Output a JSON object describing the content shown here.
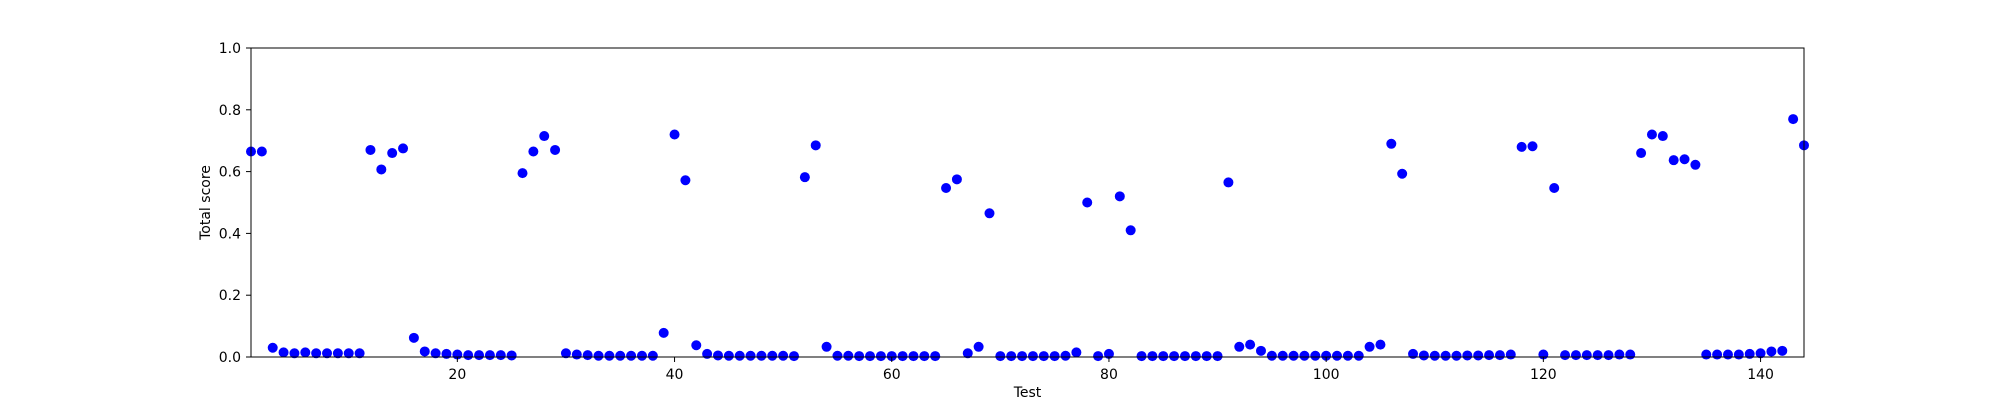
{
  "chart_data": {
    "type": "scatter",
    "xlabel": "Test",
    "ylabel": "Total score",
    "xlim": [
      1,
      144
    ],
    "ylim": [
      0.0,
      1.0
    ],
    "xticks": [
      20,
      40,
      60,
      80,
      100,
      120,
      140
    ],
    "xtick_labels": [
      "20",
      "40",
      "60",
      "80",
      "100",
      "120",
      "140"
    ],
    "yticks": [
      0.0,
      0.2,
      0.4,
      0.6,
      0.8,
      1.0
    ],
    "ytick_labels": [
      "0.0",
      "0.2",
      "0.4",
      "0.6",
      "0.8",
      "1.0"
    ],
    "grid": false,
    "marker_color": "#0000ff",
    "series": [
      {
        "x": [
          1,
          2,
          3,
          4,
          5,
          6,
          7,
          8,
          9,
          10,
          11,
          12,
          13,
          14,
          15,
          16,
          17,
          18,
          19,
          20,
          21,
          22,
          23,
          24,
          25,
          26,
          27,
          28,
          29,
          30,
          31,
          32,
          33,
          34,
          35,
          36,
          37,
          38,
          39,
          40,
          41,
          42,
          43,
          44,
          45,
          46,
          47,
          48,
          49,
          50,
          51,
          52,
          53,
          54,
          55,
          56,
          57,
          58,
          59,
          60,
          61,
          62,
          63,
          64,
          65,
          66,
          67,
          68,
          69,
          70,
          71,
          72,
          73,
          74,
          75,
          76,
          77,
          78,
          79,
          80,
          81,
          82,
          83,
          84,
          85,
          86,
          87,
          88,
          89,
          90,
          91,
          92,
          93,
          94,
          95,
          96,
          97,
          98,
          99,
          100,
          101,
          102,
          103,
          104,
          105,
          106,
          107,
          108,
          109,
          110,
          111,
          112,
          113,
          114,
          115,
          116,
          117,
          118,
          119,
          120,
          121,
          122,
          123,
          124,
          125,
          126,
          127,
          128,
          129,
          130,
          131,
          132,
          133,
          134,
          135,
          136,
          137,
          138,
          139,
          140,
          141,
          142,
          143,
          144
        ],
        "y": [
          0.665,
          0.665,
          0.03,
          0.015,
          0.012,
          0.015,
          0.012,
          0.012,
          0.012,
          0.012,
          0.012,
          0.67,
          0.607,
          0.66,
          0.675,
          0.062,
          0.018,
          0.012,
          0.01,
          0.008,
          0.006,
          0.006,
          0.006,
          0.006,
          0.005,
          0.595,
          0.665,
          0.715,
          0.67,
          0.012,
          0.008,
          0.006,
          0.004,
          0.004,
          0.004,
          0.004,
          0.004,
          0.004,
          0.078,
          0.72,
          0.572,
          0.038,
          0.01,
          0.005,
          0.004,
          0.004,
          0.004,
          0.004,
          0.004,
          0.004,
          0.003,
          0.582,
          0.685,
          0.033,
          0.004,
          0.004,
          0.003,
          0.003,
          0.003,
          0.003,
          0.003,
          0.003,
          0.003,
          0.003,
          0.547,
          0.575,
          0.012,
          0.033,
          0.465,
          0.003,
          0.003,
          0.003,
          0.003,
          0.003,
          0.003,
          0.004,
          0.015,
          0.5,
          0.003,
          0.01,
          0.52,
          0.41,
          0.003,
          0.003,
          0.003,
          0.003,
          0.003,
          0.003,
          0.003,
          0.003,
          0.565,
          0.033,
          0.04,
          0.02,
          0.004,
          0.004,
          0.004,
          0.004,
          0.004,
          0.004,
          0.004,
          0.004,
          0.004,
          0.033,
          0.04,
          0.69,
          0.593,
          0.01,
          0.005,
          0.004,
          0.004,
          0.004,
          0.005,
          0.005,
          0.006,
          0.006,
          0.008,
          0.68,
          0.682,
          0.008,
          0.547,
          0.006,
          0.006,
          0.006,
          0.006,
          0.006,
          0.008,
          0.008,
          0.66,
          0.72,
          0.715,
          0.637,
          0.64,
          0.622,
          0.008,
          0.008,
          0.008,
          0.008,
          0.01,
          0.012,
          0.018,
          0.02,
          0.77,
          0.685
        ]
      }
    ]
  }
}
